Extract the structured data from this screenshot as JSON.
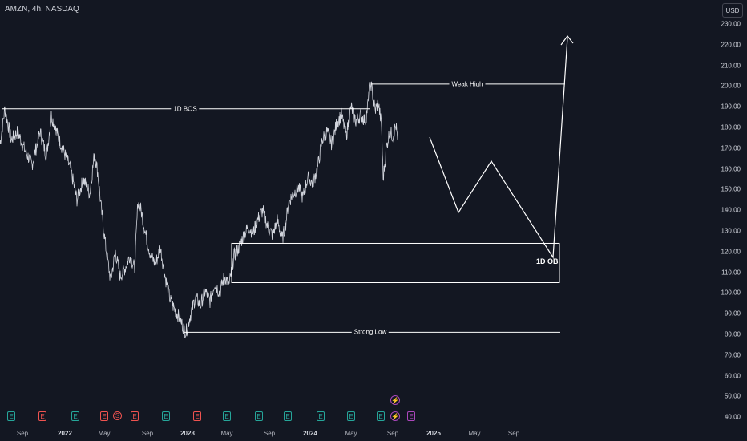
{
  "header": {
    "symbol": "AMZN, 4h, NASDAQ"
  },
  "currency_button": {
    "label": "USD"
  },
  "price_axis": {
    "labels": [
      "230.00",
      "220.00",
      "210.00",
      "200.00",
      "190.00",
      "180.00",
      "170.00",
      "160.00",
      "150.00",
      "140.00",
      "130.00",
      "120.00",
      "110.00",
      "100.00",
      "90.00",
      "80.00",
      "70.00",
      "60.00",
      "50.00",
      "40.00"
    ]
  },
  "time_axis": {
    "labels": [
      {
        "text": "Sep",
        "year": false
      },
      {
        "text": "2022",
        "year": true
      },
      {
        "text": "May",
        "year": false
      },
      {
        "text": "Sep",
        "year": false
      },
      {
        "text": "2023",
        "year": true
      },
      {
        "text": "May",
        "year": false
      },
      {
        "text": "Sep",
        "year": false
      },
      {
        "text": "2024",
        "year": true
      },
      {
        "text": "May",
        "year": false
      },
      {
        "text": "Sep",
        "year": false
      },
      {
        "text": "2025",
        "year": true
      },
      {
        "text": "May",
        "year": false
      },
      {
        "text": "Sep",
        "year": false
      }
    ]
  },
  "annotations": {
    "bos_label": "1D BOS",
    "weak_high_label": "Weak High",
    "strong_low_label": "Strong Low",
    "ob_label": "1D OB"
  },
  "levels": {
    "bos": 189,
    "weak_high": 201,
    "strong_low": 81,
    "ob_top": 124,
    "ob_bottom": 105
  },
  "events": [
    {
      "type": "earnings-green",
      "glyph": "E"
    },
    {
      "type": "earnings-red",
      "glyph": "E"
    },
    {
      "type": "earnings-green",
      "glyph": "E"
    },
    {
      "type": "earnings-red",
      "glyph": "E"
    },
    {
      "type": "dividend-red",
      "glyph": "S"
    },
    {
      "type": "earnings-red",
      "glyph": "E"
    },
    {
      "type": "earnings-green",
      "glyph": "E"
    },
    {
      "type": "earnings-red",
      "glyph": "E"
    },
    {
      "type": "earnings-green",
      "glyph": "E"
    },
    {
      "type": "earnings-green",
      "glyph": "E"
    },
    {
      "type": "earnings-green",
      "glyph": "E"
    },
    {
      "type": "earnings-green",
      "glyph": "E"
    },
    {
      "type": "earnings-green",
      "glyph": "E"
    },
    {
      "type": "earnings-green",
      "glyph": "E"
    },
    {
      "type": "split-purple",
      "glyph": "⚡"
    },
    {
      "type": "split-purple",
      "glyph": "⚡"
    },
    {
      "type": "earnings-purple",
      "glyph": "E"
    }
  ],
  "colors": {
    "background": "#131722",
    "price_line": "#d1d4dc",
    "drawing": "#ffffff",
    "axis_text": "#d1d4dc"
  }
}
